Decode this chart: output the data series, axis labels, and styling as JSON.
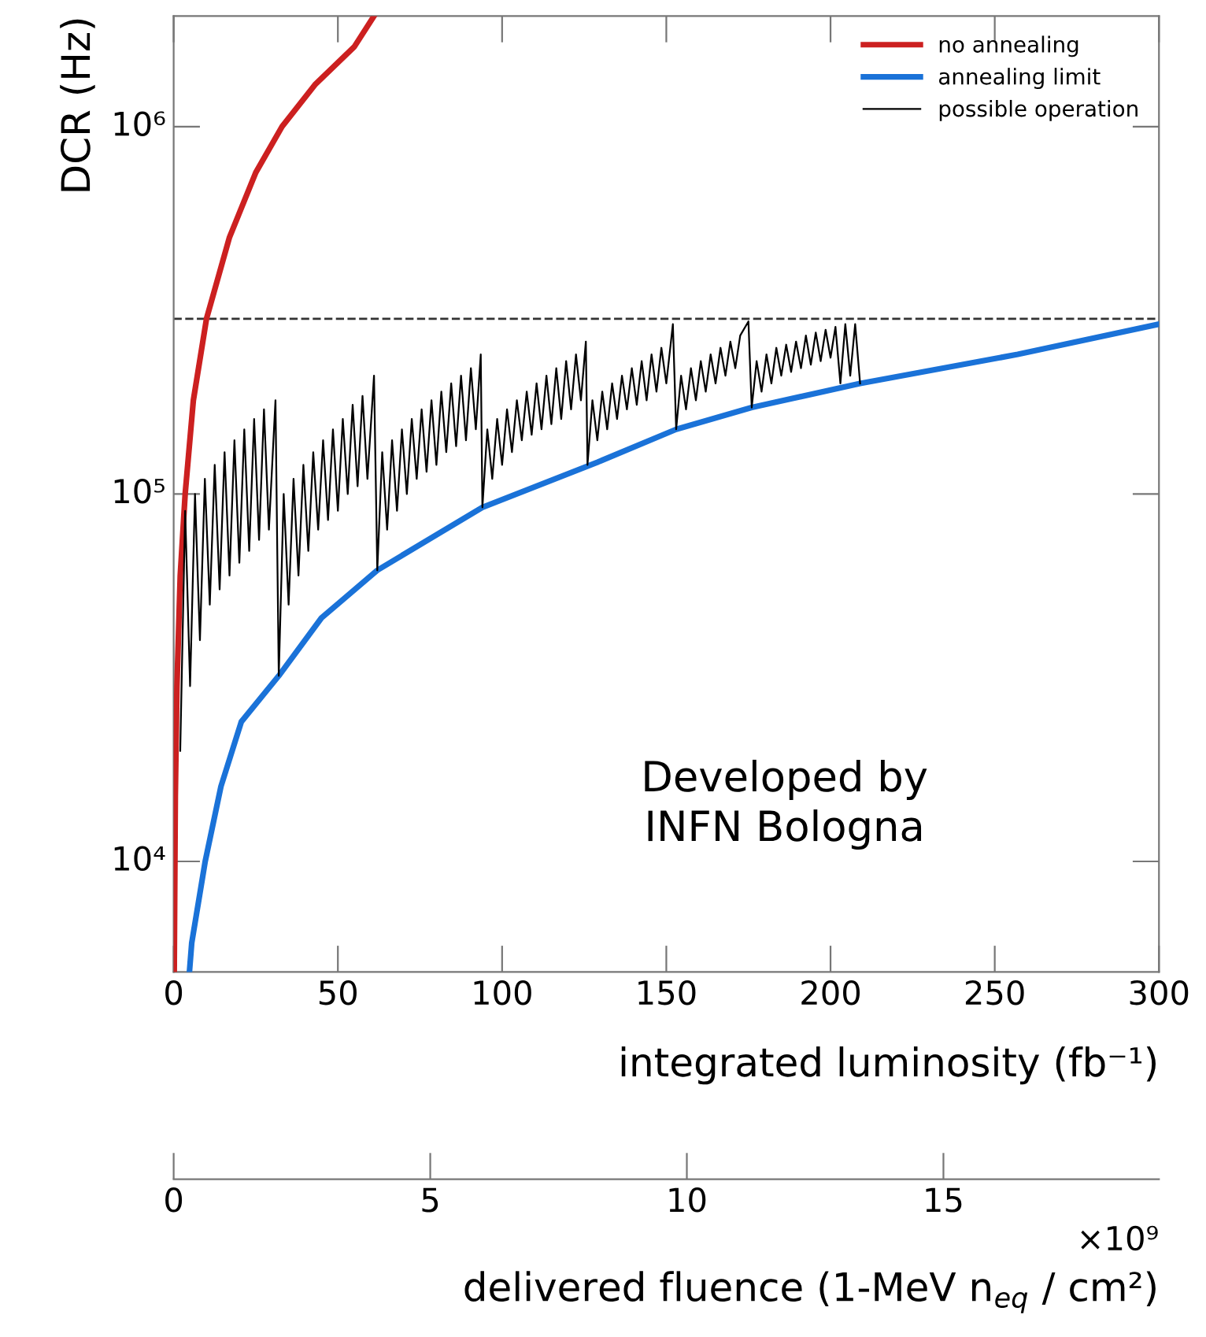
{
  "chart_data": {
    "type": "line",
    "xlabel": "integrated luminosity (fb⁻¹)",
    "ylabel": "DCR (Hz)",
    "x2label": "delivered fluence (1-MeV n$_{eq}$ / cm²)",
    "annotations": [
      "Developed by\nINFN Bologna",
      "×10⁹"
    ],
    "xlim": [
      0,
      300
    ],
    "xticks": [
      0,
      50,
      100,
      150,
      200,
      250,
      300
    ],
    "x2lim": [
      0,
      19.2
    ],
    "x2ticks": [
      0,
      5,
      10,
      15
    ],
    "log": "y",
    "ylim": [
      5000,
      2000000
    ],
    "yticks": [
      {
        "value": 10000,
        "label": "10⁴"
      },
      {
        "value": 100000,
        "label": "10⁵"
      },
      {
        "value": 1000000,
        "label": "10⁶"
      }
    ],
    "grid": false,
    "legend": "top right",
    "line_style": "solid",
    "marker": "none",
    "ref_lines": [
      {
        "axis": "y",
        "value": 300000,
        "label": null,
        "color": "#333333",
        "line_style": "dashed"
      }
    ],
    "series": [
      {
        "name": "no annealing",
        "color": "#cc2020",
        "x": [
          0.17,
          0.5,
          1,
          2,
          3.5,
          6,
          10,
          17,
          25,
          33,
          43,
          55,
          61
        ],
        "values": [
          5000,
          15000,
          30000,
          60000,
          100000,
          180000,
          300000,
          500000,
          750000,
          1000000,
          1300000,
          1650000,
          2000000
        ]
      },
      {
        "name": "annealing limit",
        "color": "#1a72d8",
        "x": [
          4.8,
          5.5,
          9.6,
          14.4,
          20.6,
          32,
          45,
          62,
          94,
          129,
          153,
          176,
          209,
          257,
          300
        ],
        "values": [
          5000,
          6000,
          10000,
          16000,
          24000,
          32000,
          46000,
          62000,
          92000,
          122000,
          150000,
          172000,
          200000,
          240000,
          290000
        ]
      },
      {
        "name": "possible operation",
        "color": "#000000",
        "x": [
          2,
          3.5,
          5,
          6.5,
          8,
          9.5,
          11,
          12.5,
          14,
          15.5,
          17,
          18.5,
          20,
          21.5,
          23,
          24.5,
          26,
          27.5,
          29,
          31,
          32,
          33.5,
          35,
          36.5,
          38,
          39.5,
          41,
          42.5,
          44,
          45.5,
          47,
          48.5,
          50,
          51.5,
          53,
          54.5,
          56,
          57.5,
          59,
          61,
          62,
          63.5,
          65,
          66.5,
          68,
          69.5,
          71,
          72.5,
          74,
          75.5,
          77,
          78.5,
          80,
          81.5,
          83,
          84.5,
          86,
          87.5,
          89,
          90.5,
          92,
          93.5,
          94,
          95.5,
          97,
          98.5,
          100,
          101.5,
          103,
          104.5,
          106,
          107.5,
          109,
          110.5,
          112,
          113.5,
          115,
          116.5,
          118,
          119.5,
          121,
          122.5,
          124,
          125.5,
          126,
          127.5,
          129,
          130.5,
          132,
          133.5,
          135,
          136.5,
          138,
          139.5,
          141,
          142.5,
          144,
          145.5,
          147,
          148.5,
          150,
          152,
          153,
          154.5,
          156,
          157.5,
          159,
          160.5,
          162,
          163.5,
          165,
          166.5,
          168,
          169.5,
          171,
          172.5,
          175,
          176,
          177.5,
          179,
          180.5,
          182,
          183.5,
          185,
          186.5,
          188,
          189.5,
          191,
          192.5,
          194,
          195.5,
          197,
          198.5,
          200,
          201.5,
          203,
          204.5,
          206,
          207.5,
          209
        ],
        "values": [
          20000,
          90000,
          30000,
          100000,
          40000,
          110000,
          50000,
          120000,
          55000,
          130000,
          60000,
          140000,
          65000,
          150000,
          70000,
          160000,
          75000,
          170000,
          80000,
          180000,
          32000,
          100000,
          50000,
          110000,
          60000,
          120000,
          70000,
          130000,
          80000,
          140000,
          85000,
          150000,
          90000,
          160000,
          100000,
          175000,
          105000,
          185000,
          110000,
          210000,
          62000,
          130000,
          80000,
          140000,
          90000,
          150000,
          100000,
          160000,
          110000,
          170000,
          115000,
          180000,
          120000,
          190000,
          130000,
          200000,
          135000,
          210000,
          140000,
          220000,
          150000,
          240000,
          92000,
          150000,
          110000,
          160000,
          120000,
          170000,
          130000,
          180000,
          140000,
          190000,
          145000,
          200000,
          150000,
          210000,
          155000,
          220000,
          160000,
          230000,
          170000,
          240000,
          180000,
          260000,
          120000,
          180000,
          140000,
          190000,
          150000,
          200000,
          160000,
          210000,
          170000,
          220000,
          175000,
          230000,
          180000,
          240000,
          190000,
          250000,
          200000,
          290000,
          150000,
          210000,
          170000,
          220000,
          180000,
          230000,
          190000,
          240000,
          200000,
          250000,
          210000,
          260000,
          220000,
          270000,
          295000,
          172000,
          230000,
          190000,
          240000,
          200000,
          250000,
          210000,
          255000,
          215000,
          260000,
          220000,
          270000,
          225000,
          275000,
          230000,
          280000,
          235000,
          285000,
          200000,
          290000,
          210000,
          290000,
          200000
        ]
      }
    ]
  }
}
